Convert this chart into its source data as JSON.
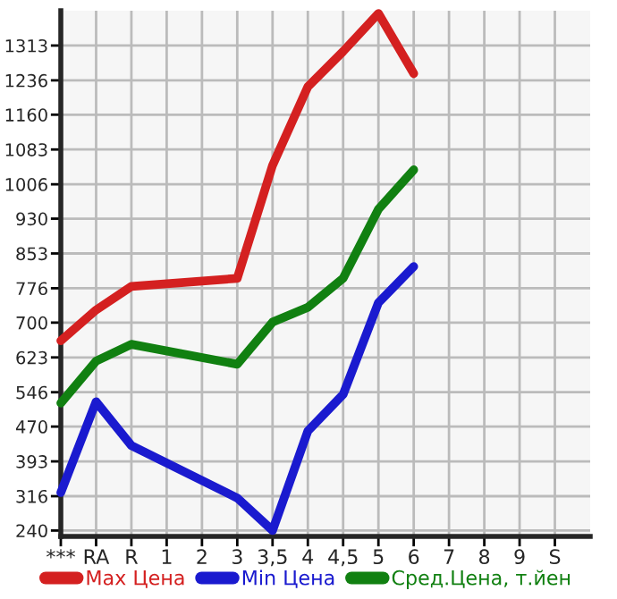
{
  "chart_data": {
    "type": "line",
    "categories": [
      "***",
      "RA",
      "R",
      "1",
      "2",
      "3",
      "3,5",
      "4",
      "4,5",
      "5",
      "6",
      "7",
      "8",
      "9",
      "S"
    ],
    "series": [
      {
        "name": "Max Цена",
        "color": "#d42020",
        "values": [
          660,
          728,
          780,
          null,
          null,
          798,
          1048,
          1222,
          1300,
          1384,
          1251,
          null,
          null,
          null,
          null
        ]
      },
      {
        "name": "Min Цена",
        "color": "#1a1acf",
        "values": [
          324,
          525,
          428,
          null,
          null,
          312,
          240,
          460,
          541,
          744,
          824,
          null,
          null,
          null,
          null
        ]
      },
      {
        "name": "Сред.Цена, т.йен",
        "color": "#118011",
        "values": [
          522,
          615,
          652,
          null,
          null,
          608,
          701,
          734,
          798,
          951,
          1038,
          null,
          null,
          null,
          null
        ]
      }
    ],
    "ylim": [
      227,
      1390
    ],
    "yticks": [
      240,
      316,
      393,
      470,
      546,
      623,
      700,
      776,
      853,
      930,
      1006,
      1083,
      1160,
      1236,
      1313
    ],
    "grid": true,
    "legend": "bottom",
    "marker": "none",
    "line_style": "solid"
  }
}
